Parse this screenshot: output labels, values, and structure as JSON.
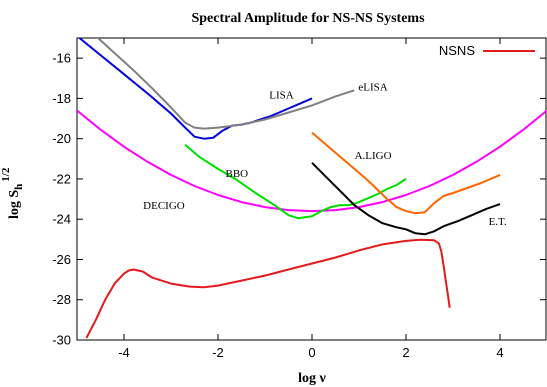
{
  "chart_data": {
    "type": "line",
    "title": "Spectral Amplitude for NS-NS Systems",
    "xlabel": "log ν",
    "ylabel": {
      "main": "log S",
      "sub": "h",
      "sup": "1/2"
    },
    "xlim": [
      -5,
      5
    ],
    "ylim": [
      -30,
      -15
    ],
    "xticks": [
      -4,
      -2,
      0,
      2,
      4
    ],
    "yticks": [
      -30,
      -28,
      -26,
      -24,
      -22,
      -20,
      -18,
      -16
    ],
    "grid": false,
    "legend": {
      "position": "top-right",
      "entries": [
        {
          "label": "NSNS",
          "color": "#e41a1c"
        }
      ]
    },
    "series": [
      {
        "name": "NSNS",
        "color": "#e41a1c",
        "x": [
          -4.8,
          -4.6,
          -4.4,
          -4.2,
          -4.0,
          -3.9,
          -3.8,
          -3.6,
          -3.4,
          -3.0,
          -2.6,
          -2.3,
          -2.0,
          -1.5,
          -1.0,
          -0.5,
          0.0,
          0.5,
          1.0,
          1.5,
          2.0,
          2.3,
          2.6,
          2.7,
          2.75,
          2.8,
          2.85,
          2.9,
          2.93
        ],
        "y": [
          -29.9,
          -29.0,
          -28.0,
          -27.2,
          -26.7,
          -26.55,
          -26.5,
          -26.6,
          -26.9,
          -27.2,
          -27.35,
          -27.38,
          -27.3,
          -27.05,
          -26.8,
          -26.5,
          -26.2,
          -25.9,
          -25.55,
          -25.25,
          -25.08,
          -25.02,
          -25.05,
          -25.2,
          -25.6,
          -26.3,
          -27.1,
          -27.9,
          -28.4
        ]
      },
      {
        "name": "DECIGO",
        "color": "#ff00ff",
        "x": [
          -5.0,
          -4.5,
          -4.0,
          -3.5,
          -3.0,
          -2.5,
          -2.0,
          -1.5,
          -1.0,
          -0.5,
          0.0,
          0.5,
          1.0,
          1.5,
          2.0,
          2.5,
          3.0,
          3.5,
          4.0,
          4.5,
          5.0
        ],
        "y": [
          -18.6,
          -19.55,
          -20.4,
          -21.15,
          -21.8,
          -22.35,
          -22.8,
          -23.15,
          -23.4,
          -23.55,
          -23.6,
          -23.55,
          -23.4,
          -23.15,
          -22.8,
          -22.35,
          -21.8,
          -21.15,
          -20.4,
          -19.55,
          -18.6
        ]
      },
      {
        "name": "BBO",
        "color": "#00dd00",
        "x": [
          -2.7,
          -2.4,
          -2.0,
          -1.6,
          -1.2,
          -0.8,
          -0.5,
          -0.3,
          0.0,
          0.2,
          0.4,
          0.6,
          0.8,
          1.0,
          1.2,
          1.4,
          1.6,
          1.8,
          2.0
        ],
        "y": [
          -20.3,
          -20.9,
          -21.5,
          -22.05,
          -22.7,
          -23.3,
          -23.8,
          -23.95,
          -23.85,
          -23.6,
          -23.4,
          -23.3,
          -23.3,
          -23.15,
          -22.95,
          -22.75,
          -22.5,
          -22.3,
          -22.0
        ]
      },
      {
        "name": "LISA",
        "color": "#0000dd",
        "x": [
          -5.0,
          -4.5,
          -4.0,
          -3.5,
          -3.0,
          -2.7,
          -2.5,
          -2.3,
          -2.1,
          -1.9,
          -1.7,
          -1.5,
          -1.3,
          -1.1,
          -0.9,
          -0.7,
          -0.5,
          -0.3,
          -0.1,
          0.0
        ],
        "y": [
          -14.9,
          -15.85,
          -16.8,
          -17.75,
          -18.75,
          -19.45,
          -19.9,
          -20.0,
          -19.95,
          -19.6,
          -19.35,
          -19.3,
          -19.2,
          -19.05,
          -18.9,
          -18.7,
          -18.5,
          -18.3,
          -18.1,
          -18.0
        ]
      },
      {
        "name": "eLISA",
        "color": "#808080",
        "x": [
          -4.6,
          -4.2,
          -3.8,
          -3.4,
          -3.0,
          -2.7,
          -2.5,
          -2.3,
          -2.0,
          -1.5,
          -1.0,
          -0.5,
          0.0,
          0.5,
          0.9
        ],
        "y": [
          -14.9,
          -15.75,
          -16.6,
          -17.5,
          -18.45,
          -19.2,
          -19.45,
          -19.5,
          -19.45,
          -19.3,
          -19.05,
          -18.7,
          -18.35,
          -17.9,
          -17.6
        ]
      },
      {
        "name": "A.LIGO",
        "color": "#ff6600",
        "x": [
          0.0,
          0.4,
          0.8,
          1.2,
          1.6,
          1.8,
          2.0,
          2.2,
          2.4,
          2.6,
          2.8,
          3.0,
          3.3,
          3.6,
          4.0
        ],
        "y": [
          -19.7,
          -20.5,
          -21.3,
          -22.1,
          -23.0,
          -23.4,
          -23.6,
          -23.7,
          -23.65,
          -23.2,
          -22.85,
          -22.7,
          -22.45,
          -22.2,
          -21.8
        ]
      },
      {
        "name": "E.T.",
        "color": "#000000",
        "x": [
          0.0,
          0.3,
          0.6,
          0.9,
          1.2,
          1.5,
          1.8,
          2.0,
          2.2,
          2.4,
          2.6,
          2.8,
          3.1,
          3.4,
          3.7,
          4.0
        ],
        "y": [
          -21.2,
          -21.9,
          -22.6,
          -23.3,
          -23.8,
          -24.2,
          -24.4,
          -24.5,
          -24.7,
          -24.75,
          -24.6,
          -24.35,
          -24.1,
          -23.8,
          -23.5,
          -23.25
        ]
      }
    ],
    "annotations": [
      {
        "text": "LISA",
        "x": -0.65,
        "y": -18.0
      },
      {
        "text": "eLISA",
        "x": 1.3,
        "y": -17.6
      },
      {
        "text": "BBO",
        "x": -1.6,
        "y": -21.9
      },
      {
        "text": "A.LIGO",
        "x": 1.3,
        "y": -21.0
      },
      {
        "text": "DECIGO",
        "x": -3.15,
        "y": -23.5
      },
      {
        "text": "E.T.",
        "x": 3.95,
        "y": -24.3
      }
    ]
  }
}
